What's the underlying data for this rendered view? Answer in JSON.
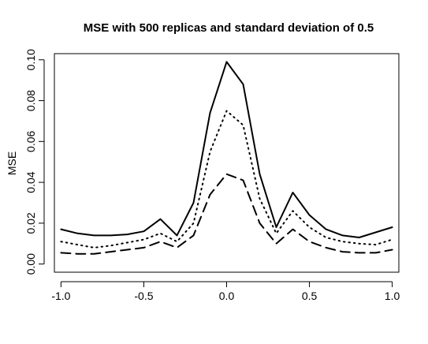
{
  "chart_data": {
    "type": "line",
    "title": "MSE with 500 replicas and standard deviation of 0.5",
    "xlabel": "",
    "ylabel": "MSE",
    "xlim": [
      -1.04,
      1.04
    ],
    "ylim": [
      -0.004,
      0.103
    ],
    "xticks": [
      -1.0,
      -0.5,
      0.0,
      0.5,
      1.0
    ],
    "xtick_labels": [
      "-1.0",
      "-0.5",
      "0.0",
      "0.5",
      "1.0"
    ],
    "yticks": [
      0.0,
      0.02,
      0.04,
      0.06,
      0.08,
      0.1
    ],
    "ytick_labels": [
      "0.00",
      "0.02",
      "0.04",
      "0.06",
      "0.08",
      "0.10"
    ],
    "grid": false,
    "legend": false,
    "x": [
      -1.0,
      -0.9,
      -0.8,
      -0.7,
      -0.6,
      -0.5,
      -0.4,
      -0.3,
      -0.2,
      -0.1,
      0.0,
      0.1,
      0.2,
      0.3,
      0.4,
      0.5,
      0.6,
      0.7,
      0.8,
      0.9,
      1.0
    ],
    "series": [
      {
        "style": "solid",
        "values": [
          0.017,
          0.015,
          0.014,
          0.014,
          0.0145,
          0.016,
          0.022,
          0.014,
          0.03,
          0.074,
          0.099,
          0.088,
          0.044,
          0.018,
          0.035,
          0.024,
          0.017,
          0.014,
          0.013,
          0.0155,
          0.018
        ]
      },
      {
        "style": "dotted",
        "values": [
          0.011,
          0.0095,
          0.008,
          0.009,
          0.0105,
          0.012,
          0.015,
          0.011,
          0.02,
          0.055,
          0.075,
          0.068,
          0.032,
          0.015,
          0.026,
          0.018,
          0.013,
          0.011,
          0.01,
          0.0095,
          0.012
        ]
      },
      {
        "style": "dashed",
        "values": [
          0.0055,
          0.005,
          0.005,
          0.006,
          0.007,
          0.008,
          0.011,
          0.008,
          0.014,
          0.034,
          0.044,
          0.041,
          0.02,
          0.01,
          0.017,
          0.011,
          0.008,
          0.006,
          0.0055,
          0.0055,
          0.007
        ]
      }
    ]
  }
}
